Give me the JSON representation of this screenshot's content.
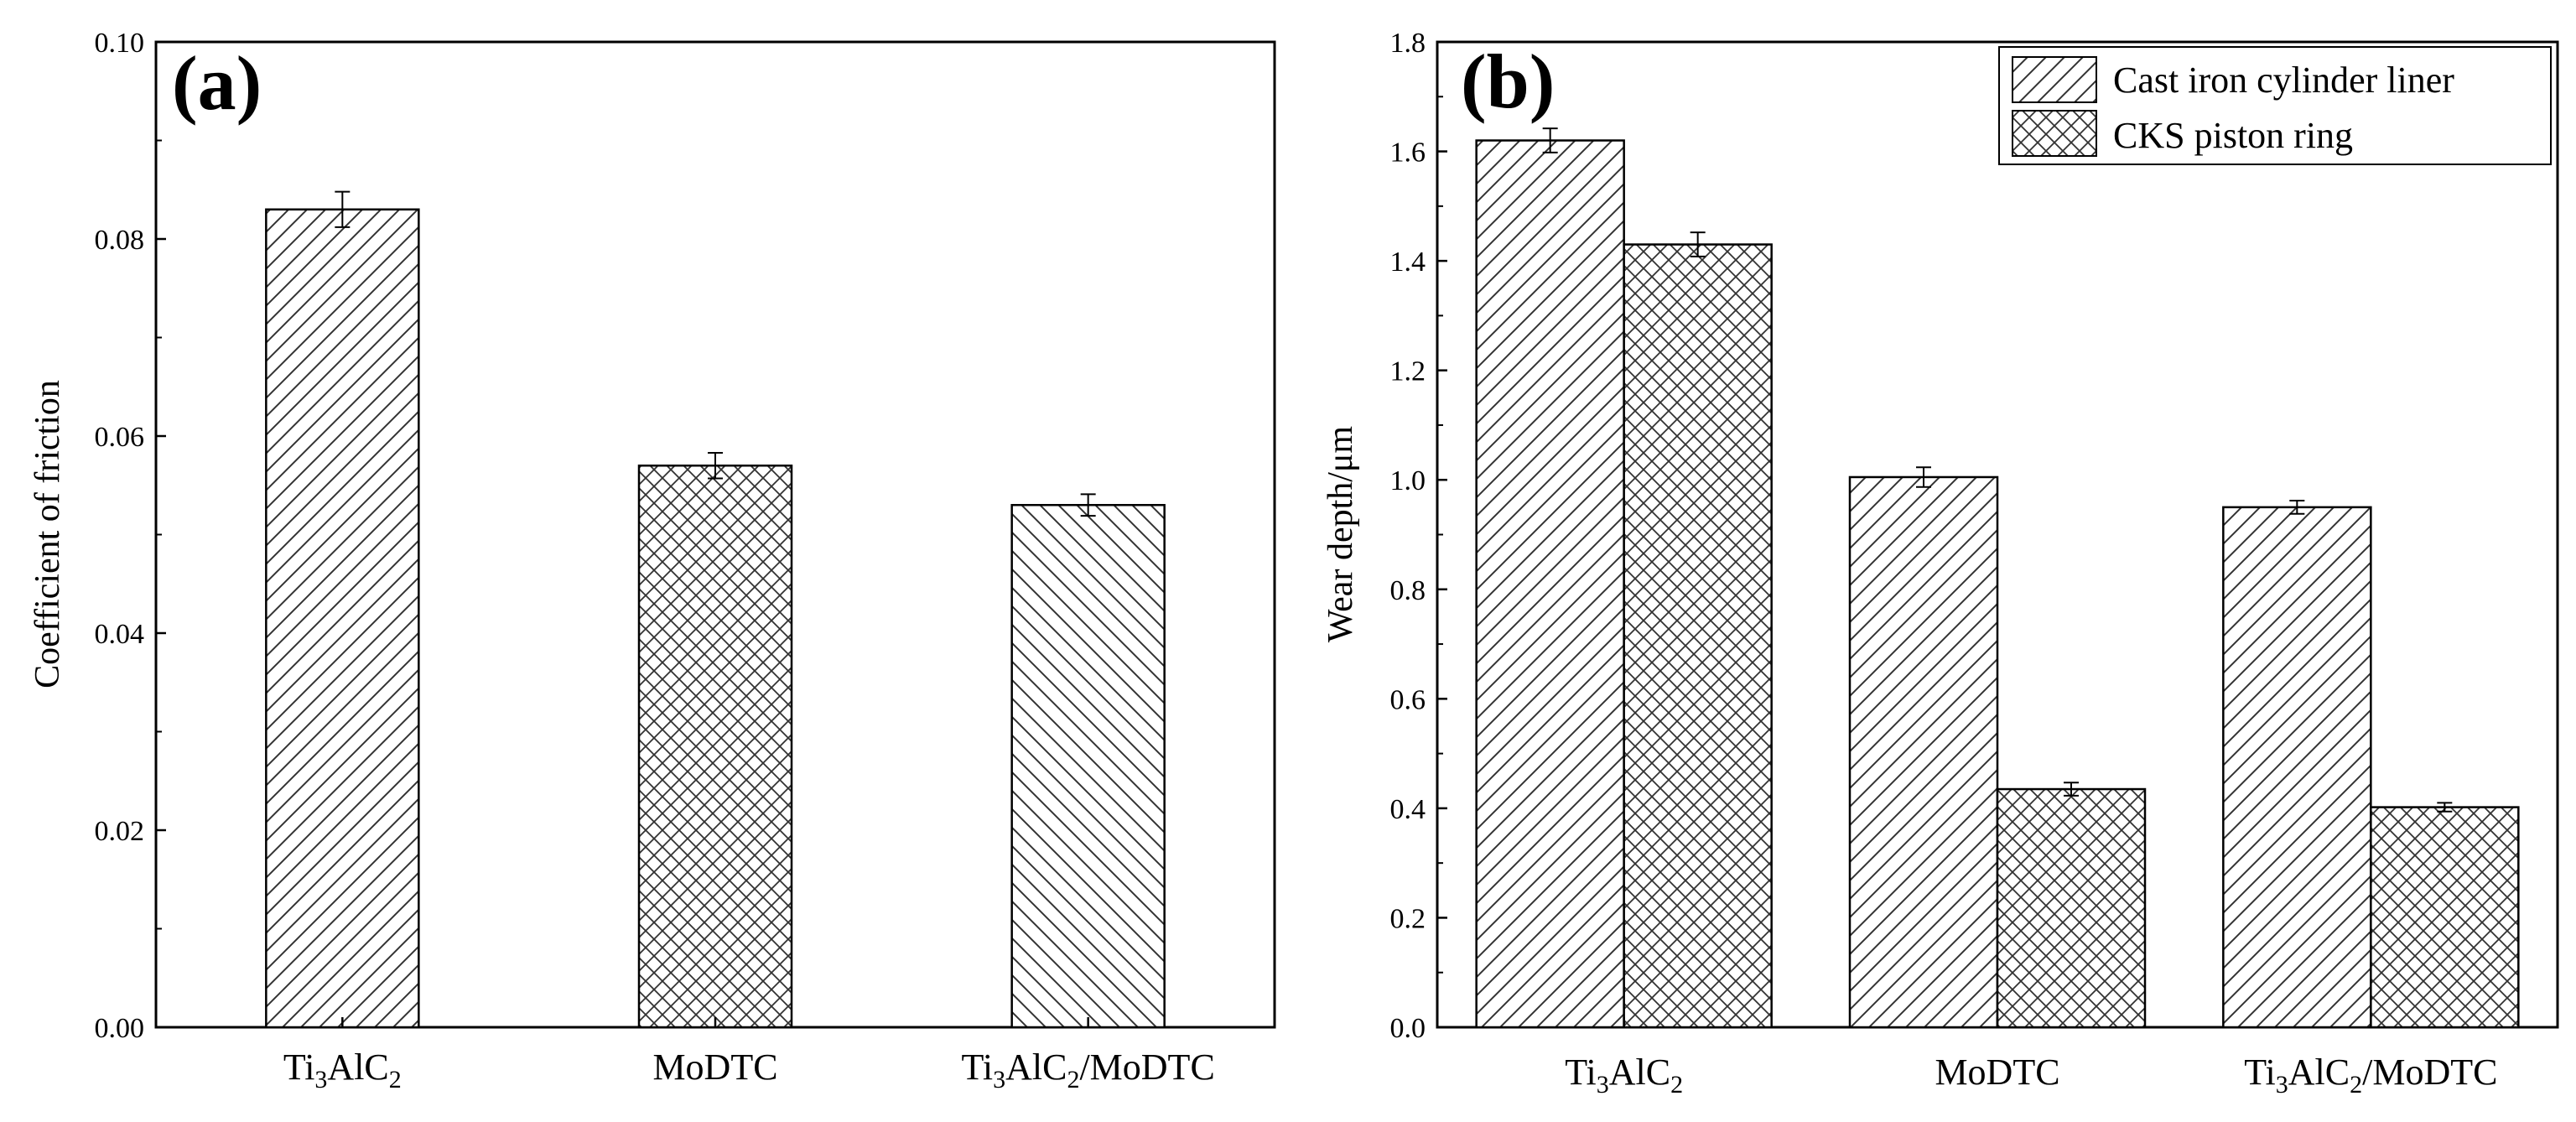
{
  "chart_data": [
    {
      "type": "bar",
      "panel": "(a)",
      "categories": [
        {
          "base": "Ti",
          "sub1": "3",
          "mid": "AlC",
          "sub2": "2",
          "tail": ""
        },
        {
          "base": "MoDTC",
          "sub1": "",
          "mid": "",
          "sub2": "",
          "tail": ""
        },
        {
          "base": "Ti",
          "sub1": "3",
          "mid": "AlC",
          "sub2": "2",
          "tail": "/MoDTC"
        }
      ],
      "category_names": [
        "Ti3AlC2",
        "MoDTC",
        "Ti3AlC2/MoDTC"
      ],
      "values": [
        0.083,
        0.057,
        0.053
      ],
      "errors": [
        0.0018,
        0.0013,
        0.0011
      ],
      "patterns": [
        "diag-right",
        "crosshatch",
        "diag-left"
      ],
      "ylabel": "Coefficient of friction",
      "xlabel": "",
      "ylim": [
        0,
        0.1
      ],
      "yticks": [
        "0.00",
        "0.02",
        "0.04",
        "0.06",
        "0.08",
        "0.10"
      ],
      "ytick_values": [
        0,
        0.02,
        0.04,
        0.06,
        0.08,
        0.1
      ],
      "grid": false
    },
    {
      "type": "bar",
      "panel": "(b)",
      "categories": [
        {
          "base": "Ti",
          "sub1": "3",
          "mid": "AlC",
          "sub2": "2",
          "tail": ""
        },
        {
          "base": "MoDTC",
          "sub1": "",
          "mid": "",
          "sub2": "",
          "tail": ""
        },
        {
          "base": "Ti",
          "sub1": "3",
          "mid": "AlC",
          "sub2": "2",
          "tail": "/MoDTC"
        }
      ],
      "category_names": [
        "Ti3AlC2",
        "MoDTC",
        "Ti3AlC2/MoDTC"
      ],
      "series": [
        {
          "name": "Cast iron cylinder liner",
          "values": [
            1.62,
            1.005,
            0.95
          ],
          "errors": [
            0.022,
            0.018,
            0.012
          ],
          "pattern": "diag-right"
        },
        {
          "name": "CKS piston ring",
          "values": [
            1.43,
            0.435,
            0.402
          ],
          "errors": [
            0.022,
            0.012,
            0.008
          ],
          "pattern": "crosshatch"
        }
      ],
      "ylabel": "Wear depth/μm",
      "xlabel": "",
      "ylim": [
        0,
        1.8
      ],
      "yticks": [
        "0.0",
        "0.2",
        "0.4",
        "0.6",
        "0.8",
        "1.0",
        "1.2",
        "1.4",
        "1.6",
        "1.8"
      ],
      "ytick_values": [
        0,
        0.2,
        0.4,
        0.6,
        0.8,
        1.0,
        1.2,
        1.4,
        1.6,
        1.8
      ],
      "legend_position": "top-right",
      "grid": false
    }
  ]
}
